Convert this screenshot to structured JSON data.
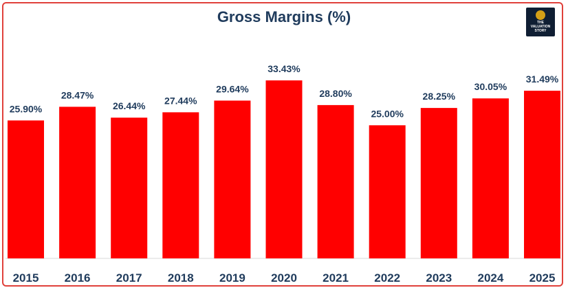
{
  "chart_data": {
    "type": "bar",
    "title": "Gross Margins (%)",
    "categories": [
      "2015",
      "2016",
      "2017",
      "2018",
      "2019",
      "2020",
      "2021",
      "2022",
      "2023",
      "2024",
      "2025"
    ],
    "values": [
      25.9,
      28.47,
      26.44,
      27.44,
      29.64,
      33.43,
      28.8,
      25.0,
      28.25,
      30.05,
      31.49
    ],
    "value_labels": [
      "25.90%",
      "28.47%",
      "26.44%",
      "27.44%",
      "29.64%",
      "33.43%",
      "28.80%",
      "25.00%",
      "28.25%",
      "30.05%",
      "31.49%"
    ],
    "xlabel": "",
    "ylabel": "",
    "ylim": [
      0,
      33.43
    ],
    "grid": false,
    "legend": "none",
    "bar_color": "#ff0000"
  },
  "logo": {
    "line1": "THE",
    "line2": "VALUATION",
    "line3": "STORY"
  },
  "colors": {
    "title": "#1f3b5c",
    "border": "#e0403a",
    "logo_bg": "#0f1e33"
  }
}
